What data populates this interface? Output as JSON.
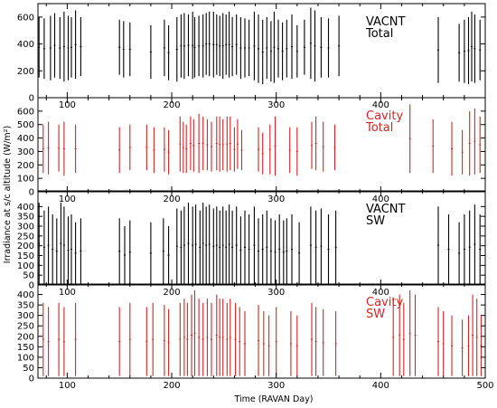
{
  "chart_data": {
    "type": "line",
    "xlabel": "Time (RAVAN Day)",
    "ylabel": "Irradiance at s/c altitude (W/m²)",
    "xlim": [
      72,
      500
    ],
    "x_ticks": [
      100,
      200,
      300,
      400,
      500
    ],
    "panels": [
      {
        "label_line1": "VACNT",
        "label_line2": "Total",
        "color": "#000000",
        "ylim": [
          0,
          700
        ],
        "y_ticks": [
          0,
          200,
          400,
          600
        ],
        "x_ticks_on_bottom": [
          100,
          200,
          300,
          400
        ],
        "segments": [
          [
            73,
            150,
            600
          ],
          [
            78,
            140,
            590
          ],
          [
            84,
            130,
            610
          ],
          [
            88,
            150,
            630
          ],
          [
            93,
            140,
            600
          ],
          [
            97,
            120,
            640
          ],
          [
            101,
            130,
            610
          ],
          [
            104,
            150,
            600
          ],
          [
            108,
            140,
            650
          ],
          [
            113,
            160,
            600
          ],
          [
            150,
            170,
            580
          ],
          [
            154,
            150,
            570
          ],
          [
            160,
            160,
            560
          ],
          [
            180,
            140,
            540
          ],
          [
            193,
            160,
            580
          ],
          [
            197,
            130,
            540
          ],
          [
            205,
            120,
            600
          ],
          [
            209,
            150,
            620
          ],
          [
            212,
            140,
            630
          ],
          [
            216,
            160,
            620
          ],
          [
            220,
            140,
            640
          ],
          [
            222,
            150,
            600
          ],
          [
            226,
            160,
            610
          ],
          [
            230,
            150,
            620
          ],
          [
            233,
            170,
            630
          ],
          [
            236,
            160,
            640
          ],
          [
            240,
            150,
            640
          ],
          [
            243,
            170,
            620
          ],
          [
            246,
            160,
            610
          ],
          [
            249,
            140,
            630
          ],
          [
            252,
            170,
            620
          ],
          [
            255,
            150,
            640
          ],
          [
            258,
            160,
            600
          ],
          [
            262,
            170,
            620
          ],
          [
            266,
            140,
            600
          ],
          [
            270,
            150,
            590
          ],
          [
            274,
            160,
            580
          ],
          [
            279,
            130,
            640
          ],
          [
            283,
            110,
            620
          ],
          [
            287,
            100,
            580
          ],
          [
            291,
            140,
            600
          ],
          [
            295,
            120,
            570
          ],
          [
            298,
            110,
            640
          ],
          [
            302,
            150,
            580
          ],
          [
            306,
            130,
            560
          ],
          [
            310,
            150,
            580
          ],
          [
            315,
            140,
            620
          ],
          [
            320,
            150,
            540
          ],
          [
            327,
            170,
            580
          ],
          [
            333,
            140,
            670
          ],
          [
            337,
            120,
            650
          ],
          [
            343,
            150,
            600
          ],
          [
            350,
            150,
            590
          ],
          [
            360,
            160,
            610
          ],
          [
            455,
            110,
            600
          ],
          [
            475,
            120,
            550
          ],
          [
            480,
            110,
            580
          ],
          [
            484,
            100,
            600
          ],
          [
            487,
            120,
            640
          ],
          [
            490,
            110,
            620
          ],
          [
            495,
            130,
            580
          ]
        ]
      },
      {
        "label_line1": "Cavity",
        "label_line2": "Total",
        "color": "#d62424",
        "ylim": [
          0,
          700
        ],
        "y_ticks": [
          0,
          100,
          200,
          300,
          400,
          500,
          600
        ],
        "x_ticks_on_bottom": [
          100,
          200,
          300,
          400
        ],
        "segments": [
          [
            77,
            140,
            500
          ],
          [
            82,
            130,
            520
          ],
          [
            92,
            150,
            500
          ],
          [
            97,
            120,
            520
          ],
          [
            108,
            140,
            500
          ],
          [
            150,
            140,
            480
          ],
          [
            160,
            160,
            500
          ],
          [
            176,
            160,
            500
          ],
          [
            183,
            140,
            480
          ],
          [
            193,
            150,
            480
          ],
          [
            197,
            130,
            460
          ],
          [
            208,
            150,
            560
          ],
          [
            211,
            140,
            520
          ],
          [
            214,
            140,
            500
          ],
          [
            218,
            160,
            560
          ],
          [
            221,
            150,
            540
          ],
          [
            226,
            140,
            580
          ],
          [
            230,
            160,
            560
          ],
          [
            234,
            160,
            540
          ],
          [
            238,
            150,
            520
          ],
          [
            243,
            160,
            560
          ],
          [
            246,
            150,
            560
          ],
          [
            249,
            160,
            540
          ],
          [
            253,
            150,
            560
          ],
          [
            256,
            160,
            560
          ],
          [
            260,
            150,
            480
          ],
          [
            263,
            170,
            540
          ],
          [
            267,
            160,
            460
          ],
          [
            283,
            150,
            480
          ],
          [
            287,
            130,
            440
          ],
          [
            294,
            130,
            500
          ],
          [
            299,
            120,
            560
          ],
          [
            313,
            140,
            480
          ],
          [
            320,
            120,
            480
          ],
          [
            334,
            170,
            520
          ],
          [
            338,
            160,
            560
          ],
          [
            345,
            150,
            520
          ],
          [
            356,
            160,
            500
          ],
          [
            428,
            140,
            650
          ],
          [
            450,
            140,
            540
          ],
          [
            468,
            120,
            520
          ],
          [
            478,
            130,
            460
          ],
          [
            485,
            120,
            600
          ],
          [
            490,
            130,
            620
          ],
          [
            495,
            140,
            560
          ]
        ]
      },
      {
        "label_line1": "VACNT",
        "label_line2": "SW",
        "color": "#000000",
        "ylim": [
          0,
          480
        ],
        "y_ticks": [
          0,
          50,
          100,
          150,
          200,
          250,
          300,
          350,
          400
        ],
        "x_ticks_on_bottom": [
          100,
          200,
          300,
          400
        ],
        "segments": [
          [
            73,
            5,
            420
          ],
          [
            78,
            5,
            380
          ],
          [
            82,
            5,
            400
          ],
          [
            86,
            5,
            360
          ],
          [
            90,
            5,
            340
          ],
          [
            94,
            5,
            420
          ],
          [
            97,
            5,
            400
          ],
          [
            101,
            5,
            350
          ],
          [
            104,
            5,
            360
          ],
          [
            108,
            5,
            320
          ],
          [
            113,
            5,
            340
          ],
          [
            150,
            5,
            340
          ],
          [
            155,
            5,
            300
          ],
          [
            160,
            5,
            330
          ],
          [
            180,
            5,
            320
          ],
          [
            192,
            5,
            340
          ],
          [
            197,
            5,
            300
          ],
          [
            205,
            5,
            390
          ],
          [
            209,
            5,
            380
          ],
          [
            212,
            5,
            400
          ],
          [
            216,
            5,
            420
          ],
          [
            220,
            5,
            400
          ],
          [
            223,
            5,
            410
          ],
          [
            227,
            5,
            380
          ],
          [
            230,
            5,
            420
          ],
          [
            233,
            5,
            400
          ],
          [
            236,
            5,
            410
          ],
          [
            240,
            5,
            390
          ],
          [
            243,
            5,
            400
          ],
          [
            246,
            5,
            380
          ],
          [
            249,
            5,
            400
          ],
          [
            252,
            5,
            380
          ],
          [
            255,
            5,
            410
          ],
          [
            258,
            5,
            380
          ],
          [
            262,
            5,
            400
          ],
          [
            266,
            5,
            350
          ],
          [
            270,
            5,
            380
          ],
          [
            274,
            5,
            360
          ],
          [
            279,
            5,
            400
          ],
          [
            283,
            5,
            340
          ],
          [
            287,
            5,
            360
          ],
          [
            291,
            5,
            380
          ],
          [
            295,
            5,
            340
          ],
          [
            299,
            5,
            330
          ],
          [
            303,
            5,
            360
          ],
          [
            307,
            5,
            330
          ],
          [
            310,
            5,
            340
          ],
          [
            315,
            5,
            360
          ],
          [
            322,
            5,
            320
          ],
          [
            333,
            5,
            400
          ],
          [
            338,
            5,
            380
          ],
          [
            343,
            5,
            390
          ],
          [
            350,
            5,
            360
          ],
          [
            357,
            5,
            380
          ],
          [
            455,
            5,
            400
          ],
          [
            465,
            5,
            360
          ],
          [
            475,
            5,
            320
          ],
          [
            480,
            5,
            360
          ],
          [
            485,
            5,
            380
          ],
          [
            490,
            5,
            410
          ],
          [
            495,
            5,
            360
          ]
        ]
      },
      {
        "label_line1": "Cavity",
        "label_line2": "SW",
        "color": "#d62424",
        "ylim": [
          0,
          450
        ],
        "y_ticks": [
          0,
          50,
          100,
          150,
          200,
          250,
          300,
          350,
          400
        ],
        "x_ticks_on_bottom": [
          100,
          200,
          300,
          400,
          500
        ],
        "segments": [
          [
            77,
            10,
            360
          ],
          [
            82,
            10,
            340
          ],
          [
            92,
            10,
            360
          ],
          [
            97,
            10,
            340
          ],
          [
            108,
            10,
            360
          ],
          [
            150,
            10,
            340
          ],
          [
            160,
            10,
            360
          ],
          [
            176,
            10,
            340
          ],
          [
            182,
            10,
            360
          ],
          [
            193,
            10,
            350
          ],
          [
            197,
            10,
            330
          ],
          [
            208,
            10,
            360
          ],
          [
            212,
            10,
            380
          ],
          [
            215,
            10,
            360
          ],
          [
            219,
            10,
            400
          ],
          [
            222,
            10,
            420
          ],
          [
            226,
            10,
            380
          ],
          [
            230,
            10,
            360
          ],
          [
            234,
            10,
            380
          ],
          [
            238,
            10,
            360
          ],
          [
            243,
            10,
            400
          ],
          [
            246,
            10,
            380
          ],
          [
            249,
            10,
            380
          ],
          [
            253,
            10,
            360
          ],
          [
            256,
            10,
            380
          ],
          [
            261,
            10,
            360
          ],
          [
            265,
            10,
            340
          ],
          [
            270,
            10,
            320
          ],
          [
            283,
            10,
            350
          ],
          [
            288,
            10,
            320
          ],
          [
            293,
            10,
            300
          ],
          [
            300,
            10,
            340
          ],
          [
            314,
            10,
            320
          ],
          [
            320,
            10,
            300
          ],
          [
            334,
            10,
            360
          ],
          [
            338,
            10,
            340
          ],
          [
            345,
            10,
            330
          ],
          [
            357,
            10,
            320
          ],
          [
            412,
            10,
            380
          ],
          [
            418,
            10,
            400
          ],
          [
            422,
            10,
            360
          ],
          [
            428,
            10,
            420
          ],
          [
            433,
            10,
            400
          ],
          [
            455,
            10,
            340
          ],
          [
            460,
            10,
            320
          ],
          [
            468,
            10,
            300
          ],
          [
            478,
            10,
            280
          ],
          [
            484,
            10,
            300
          ],
          [
            488,
            10,
            400
          ],
          [
            492,
            10,
            380
          ],
          [
            496,
            10,
            300
          ]
        ]
      }
    ]
  }
}
